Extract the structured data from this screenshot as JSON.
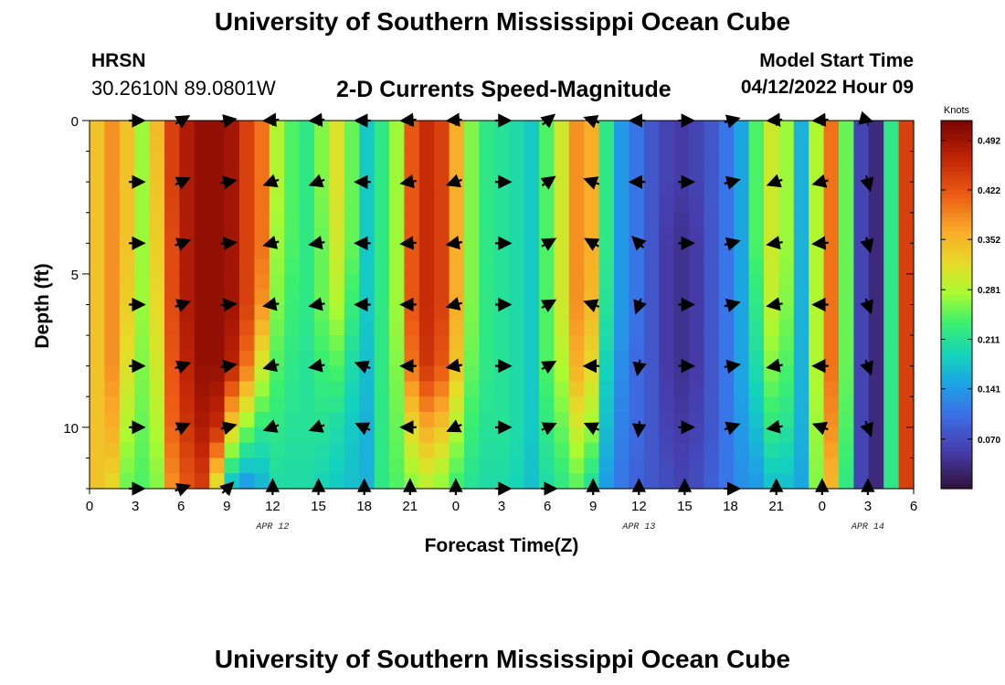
{
  "header": {
    "title": "University of Southern Mississippi Ocean Cube",
    "station": "HRSN",
    "coordinates": "30.2610N  89.0801W",
    "subtitle": "2-D Currents Speed-Magnitude",
    "model_start_label": "Model Start Time",
    "model_start_value": "04/12/2022 Hour 09"
  },
  "footer": {
    "title": "University of Southern Mississippi Ocean Cube"
  },
  "chart_data": {
    "type": "heatmap",
    "title": "2-D Currents Speed-Magnitude",
    "xlabel": "Forecast Time(Z)",
    "ylabel": "Depth (ft)",
    "x_hours_range": [
      0,
      54
    ],
    "ylim": [
      0,
      12
    ],
    "x_tick_labels": [
      "0",
      "3",
      "6",
      "9",
      "12",
      "15",
      "18",
      "21",
      "0",
      "3",
      "6",
      "9",
      "12",
      "15",
      "18",
      "21",
      "0",
      "3",
      "6"
    ],
    "date_labels": [
      {
        "text": "APR 12",
        "hour": 12
      },
      {
        "text": "APR 13",
        "hour": 36
      },
      {
        "text": "APR 14",
        "hour": 51
      }
    ],
    "y_tick_labels": [
      {
        "value": 0,
        "label": "0"
      },
      {
        "value": 5,
        "label": "5"
      },
      {
        "value": 10,
        "label": "10"
      }
    ],
    "colorbar": {
      "unit": "Knots",
      "min": 0.0,
      "max": 0.52,
      "tick_values": [
        0.07,
        0.141,
        0.211,
        0.281,
        0.352,
        0.422,
        0.492
      ],
      "tick_labels": [
        "0.070",
        "0.141",
        "0.211",
        "0.281",
        "0.352",
        "0.422",
        "0.492"
      ]
    },
    "depth_levels_ft": [
      0,
      2,
      4,
      6,
      8,
      10,
      12
    ],
    "column_hours": [
      0,
      1,
      2,
      3,
      4,
      5,
      6,
      7,
      8,
      9,
      10,
      11,
      12,
      13,
      14,
      15,
      16,
      17,
      18,
      19,
      20,
      21,
      22,
      23,
      24,
      25,
      26,
      27,
      28,
      29,
      30,
      31,
      32,
      33,
      34,
      35,
      36,
      37,
      38,
      39,
      40,
      41,
      42,
      43,
      44,
      45,
      46,
      47,
      48,
      49,
      50,
      51,
      52,
      53,
      54
    ],
    "speed_profiles_knots": [
      [
        0.34,
        0.34,
        0.34,
        0.34,
        0.34,
        0.34,
        0.34
      ],
      [
        0.38,
        0.38,
        0.38,
        0.38,
        0.38,
        0.36,
        0.32
      ],
      [
        0.34,
        0.34,
        0.34,
        0.33,
        0.31,
        0.28,
        0.25
      ],
      [
        0.27,
        0.27,
        0.27,
        0.27,
        0.26,
        0.25,
        0.24
      ],
      [
        0.35,
        0.34,
        0.33,
        0.32,
        0.3,
        0.28,
        0.26
      ],
      [
        0.44,
        0.44,
        0.43,
        0.43,
        0.42,
        0.41,
        0.38
      ],
      [
        0.48,
        0.48,
        0.48,
        0.48,
        0.47,
        0.45,
        0.42
      ],
      [
        0.5,
        0.5,
        0.5,
        0.5,
        0.5,
        0.48,
        0.44
      ],
      [
        0.5,
        0.5,
        0.5,
        0.5,
        0.5,
        0.46,
        0.3
      ],
      [
        0.49,
        0.49,
        0.49,
        0.49,
        0.47,
        0.33,
        0.16
      ],
      [
        0.44,
        0.44,
        0.44,
        0.44,
        0.4,
        0.26,
        0.13
      ],
      [
        0.4,
        0.4,
        0.4,
        0.38,
        0.3,
        0.22,
        0.16
      ],
      [
        0.28,
        0.28,
        0.27,
        0.26,
        0.24,
        0.22,
        0.2
      ],
      [
        0.24,
        0.24,
        0.24,
        0.23,
        0.22,
        0.21,
        0.2
      ],
      [
        0.22,
        0.22,
        0.22,
        0.22,
        0.21,
        0.21,
        0.2
      ],
      [
        0.26,
        0.26,
        0.25,
        0.25,
        0.23,
        0.21,
        0.19
      ],
      [
        0.31,
        0.31,
        0.3,
        0.28,
        0.24,
        0.2,
        0.18
      ],
      [
        0.25,
        0.25,
        0.25,
        0.23,
        0.2,
        0.18,
        0.17
      ],
      [
        0.18,
        0.18,
        0.18,
        0.18,
        0.17,
        0.16,
        0.16
      ],
      [
        0.22,
        0.22,
        0.22,
        0.22,
        0.22,
        0.22,
        0.22
      ],
      [
        0.27,
        0.27,
        0.27,
        0.27,
        0.26,
        0.25,
        0.24
      ],
      [
        0.42,
        0.42,
        0.42,
        0.42,
        0.4,
        0.32,
        0.26
      ],
      [
        0.46,
        0.46,
        0.46,
        0.46,
        0.45,
        0.36,
        0.28
      ],
      [
        0.44,
        0.44,
        0.44,
        0.44,
        0.42,
        0.34,
        0.26
      ],
      [
        0.36,
        0.36,
        0.36,
        0.36,
        0.34,
        0.28,
        0.23
      ],
      [
        0.26,
        0.26,
        0.26,
        0.26,
        0.25,
        0.23,
        0.21
      ],
      [
        0.22,
        0.22,
        0.22,
        0.22,
        0.22,
        0.21,
        0.2
      ],
      [
        0.21,
        0.21,
        0.21,
        0.21,
        0.21,
        0.21,
        0.2
      ],
      [
        0.2,
        0.2,
        0.2,
        0.2,
        0.2,
        0.2,
        0.19
      ],
      [
        0.18,
        0.18,
        0.18,
        0.18,
        0.18,
        0.18,
        0.17
      ],
      [
        0.24,
        0.24,
        0.24,
        0.24,
        0.24,
        0.22,
        0.2
      ],
      [
        0.3,
        0.3,
        0.3,
        0.3,
        0.28,
        0.25,
        0.22
      ],
      [
        0.38,
        0.38,
        0.38,
        0.38,
        0.36,
        0.3,
        0.24
      ],
      [
        0.36,
        0.36,
        0.36,
        0.35,
        0.32,
        0.27,
        0.2
      ],
      [
        0.22,
        0.22,
        0.22,
        0.21,
        0.19,
        0.17,
        0.14
      ],
      [
        0.14,
        0.14,
        0.14,
        0.14,
        0.13,
        0.12,
        0.11
      ],
      [
        0.11,
        0.11,
        0.11,
        0.11,
        0.1,
        0.1,
        0.09
      ],
      [
        0.08,
        0.08,
        0.08,
        0.08,
        0.08,
        0.08,
        0.08
      ],
      [
        0.06,
        0.06,
        0.05,
        0.05,
        0.05,
        0.06,
        0.07
      ],
      [
        0.05,
        0.05,
        0.04,
        0.04,
        0.04,
        0.05,
        0.06
      ],
      [
        0.06,
        0.06,
        0.05,
        0.05,
        0.05,
        0.06,
        0.07
      ],
      [
        0.08,
        0.08,
        0.08,
        0.08,
        0.08,
        0.08,
        0.09
      ],
      [
        0.11,
        0.11,
        0.11,
        0.11,
        0.11,
        0.11,
        0.11
      ],
      [
        0.15,
        0.15,
        0.15,
        0.15,
        0.15,
        0.14,
        0.13
      ],
      [
        0.24,
        0.24,
        0.24,
        0.22,
        0.2,
        0.17,
        0.14
      ],
      [
        0.3,
        0.3,
        0.3,
        0.29,
        0.26,
        0.22,
        0.17
      ],
      [
        0.27,
        0.27,
        0.27,
        0.26,
        0.24,
        0.21,
        0.17
      ],
      [
        0.16,
        0.16,
        0.16,
        0.16,
        0.16,
        0.16,
        0.15
      ],
      [
        0.28,
        0.28,
        0.28,
        0.28,
        0.28,
        0.27,
        0.26
      ],
      [
        0.4,
        0.4,
        0.4,
        0.4,
        0.4,
        0.38,
        0.35
      ],
      [
        0.25,
        0.25,
        0.25,
        0.25,
        0.25,
        0.24,
        0.22
      ],
      [
        0.06,
        0.06,
        0.06,
        0.06,
        0.06,
        0.06,
        0.06
      ],
      [
        0.03,
        0.03,
        0.03,
        0.03,
        0.03,
        0.03,
        0.03
      ],
      [
        0.22,
        0.22,
        0.22,
        0.22,
        0.22,
        0.22,
        0.22
      ],
      [
        0.44,
        0.44,
        0.44,
        0.44,
        0.44,
        0.44,
        0.44
      ]
    ],
    "arrow_hours": [
      3,
      6,
      9,
      12,
      15,
      18,
      21,
      24,
      27,
      30,
      33,
      36,
      39,
      42,
      45,
      48,
      51
    ],
    "arrow_depths_ft": [
      0,
      2,
      4,
      6,
      8,
      10,
      12
    ],
    "arrow_directions_deg": [
      [
        90,
        90,
        90,
        90,
        90,
        90,
        90
      ],
      [
        60,
        65,
        70,
        70,
        70,
        65,
        70
      ],
      [
        80,
        80,
        85,
        85,
        80,
        75,
        45
      ],
      [
        -100,
        -110,
        -105,
        -100,
        -105,
        -110,
        0
      ],
      [
        -110,
        -110,
        -100,
        -100,
        -100,
        -110,
        0
      ],
      [
        -90,
        -90,
        -90,
        -90,
        -70,
        -65,
        0
      ],
      [
        -100,
        -100,
        -95,
        -90,
        -90,
        -90,
        0
      ],
      [
        -110,
        -110,
        -100,
        -105,
        -100,
        -115,
        0
      ],
      [
        90,
        90,
        90,
        90,
        90,
        90,
        90
      ],
      [
        50,
        55,
        60,
        60,
        60,
        65,
        90
      ],
      [
        -70,
        -70,
        -60,
        -70,
        -90,
        -65,
        0
      ],
      [
        -90,
        -90,
        -45,
        -160,
        -170,
        -175,
        0
      ],
      [
        90,
        90,
        90,
        90,
        90,
        90,
        0
      ],
      [
        75,
        75,
        75,
        75,
        80,
        70,
        90
      ],
      [
        -110,
        -110,
        -100,
        -100,
        -100,
        -100,
        0
      ],
      [
        -105,
        -105,
        -95,
        -90,
        -90,
        -70,
        0
      ],
      [
        165,
        165,
        165,
        160,
        160,
        160,
        0
      ]
    ]
  }
}
